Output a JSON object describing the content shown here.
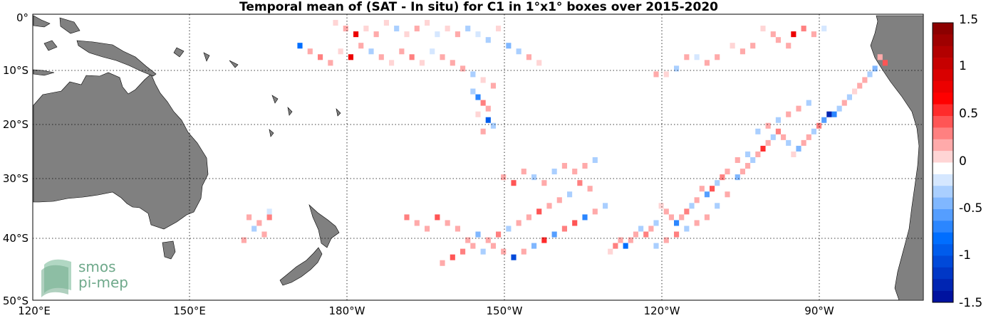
{
  "chart_data": {
    "type": "heatmap",
    "title": "Temporal mean of (SAT - In situ) for C1 in 1°x1° boxes over 2015-2020",
    "x_ticks": [
      "120°E",
      "150°E",
      "180°W",
      "150°W",
      "120°W",
      "90°W"
    ],
    "y_ticks": [
      "0°",
      "10°S",
      "20°S",
      "30°S",
      "40°S",
      "50°S"
    ],
    "x_range_deg_east": [
      120,
      295
    ],
    "y_range_deg_north": [
      0,
      -50
    ],
    "grid": true,
    "colorbar": {
      "ticks": [
        "1.5",
        "1",
        "0.5",
        "0",
        "-0.5",
        "-1",
        "-1.5"
      ],
      "range": [
        -1.5,
        1.5
      ],
      "levels": 24,
      "colormap": "blue-white-red"
    },
    "colors": {
      "land": "#808080",
      "ocean": "#ffffff",
      "negative_max": "#00008c",
      "positive_max": "#8c0000"
    },
    "cells": [
      [
        179,
        1,
        0.1
      ],
      [
        181,
        2,
        0.2
      ],
      [
        183,
        3,
        0.9
      ],
      [
        185,
        2,
        0.1
      ],
      [
        187,
        3,
        0.2
      ],
      [
        189,
        1,
        0.1
      ],
      [
        191,
        2,
        -0.2
      ],
      [
        193,
        3,
        0.1
      ],
      [
        195,
        2,
        0.2
      ],
      [
        197,
        1,
        0.1
      ],
      [
        199,
        3,
        -0.1
      ],
      [
        201,
        2,
        0.1
      ],
      [
        203,
        3,
        0.2
      ],
      [
        205,
        2,
        -0.3
      ],
      [
        207,
        3,
        -0.1
      ],
      [
        209,
        4,
        -0.2
      ],
      [
        211,
        2,
        0.1
      ],
      [
        213,
        5,
        -0.4
      ],
      [
        215,
        6,
        -0.2
      ],
      [
        217,
        7,
        0.2
      ],
      [
        219,
        8,
        0.1
      ],
      [
        172,
        5,
        -0.8
      ],
      [
        174,
        6,
        0.2
      ],
      [
        176,
        7,
        0.4
      ],
      [
        178,
        8,
        0.3
      ],
      [
        180,
        6,
        0.1
      ],
      [
        182,
        7,
        0.9
      ],
      [
        184,
        5,
        0.2
      ],
      [
        186,
        6,
        -0.2
      ],
      [
        188,
        7,
        0.3
      ],
      [
        190,
        8,
        0.1
      ],
      [
        192,
        6,
        0.2
      ],
      [
        194,
        7,
        0.4
      ],
      [
        196,
        8,
        0.1
      ],
      [
        198,
        6,
        -0.1
      ],
      [
        200,
        7,
        0.2
      ],
      [
        202,
        8,
        0.3
      ],
      [
        204,
        9,
        0.2
      ],
      [
        206,
        10,
        -0.2
      ],
      [
        208,
        11,
        0.1
      ],
      [
        210,
        12,
        0.2
      ],
      [
        206,
        13,
        -0.3
      ],
      [
        207,
        14,
        -0.6
      ],
      [
        208,
        15,
        0.4
      ],
      [
        209,
        16,
        0.2
      ],
      [
        207,
        17,
        0.1
      ],
      [
        209,
        18,
        -0.9
      ],
      [
        210,
        19,
        -0.3
      ],
      [
        208,
        20,
        0.3
      ],
      [
        263,
        2,
        0.1
      ],
      [
        265,
        3,
        0.2
      ],
      [
        266,
        4,
        0.3
      ],
      [
        268,
        5,
        0.2
      ],
      [
        269,
        3,
        0.9
      ],
      [
        271,
        2,
        0.4
      ],
      [
        273,
        3,
        0.2
      ],
      [
        275,
        2,
        -0.1
      ],
      [
        257,
        5,
        0.1
      ],
      [
        259,
        6,
        0.2
      ],
      [
        261,
        5,
        0.3
      ],
      [
        248,
        7,
        0.2
      ],
      [
        250,
        7,
        -0.1
      ],
      [
        252,
        8,
        0.2
      ],
      [
        254,
        7,
        0.3
      ],
      [
        244,
        10,
        0.1
      ],
      [
        246,
        9,
        -0.2
      ],
      [
        242,
        10,
        0.2
      ],
      [
        286,
        7,
        0.2
      ],
      [
        287,
        8,
        0.5
      ],
      [
        285,
        9,
        -0.4
      ],
      [
        284,
        10,
        -0.2
      ],
      [
        283,
        11,
        0.3
      ],
      [
        282,
        12,
        0.2
      ],
      [
        281,
        13,
        0.1
      ],
      [
        280,
        14,
        -0.3
      ],
      [
        279,
        15,
        0.2
      ],
      [
        278,
        16,
        -0.2
      ],
      [
        277,
        17,
        -0.6
      ],
      [
        276,
        17,
        -1.3
      ],
      [
        275,
        18,
        -0.5
      ],
      [
        274,
        19,
        0.4
      ],
      [
        273,
        20,
        -0.3
      ],
      [
        272,
        21,
        0.3
      ],
      [
        271,
        22,
        0.2
      ],
      [
        270,
        23,
        -0.4
      ],
      [
        269,
        24,
        0.1
      ],
      [
        268,
        22,
        -0.2
      ],
      [
        267,
        21,
        0.2
      ],
      [
        266,
        20,
        0.4
      ],
      [
        265,
        21,
        -0.2
      ],
      [
        264,
        22,
        0.3
      ],
      [
        263,
        23,
        0.6
      ],
      [
        262,
        24,
        0.2
      ],
      [
        261,
        25,
        -0.3
      ],
      [
        260,
        26,
        0.2
      ],
      [
        259,
        27,
        0.3
      ],
      [
        258,
        28,
        -0.4
      ],
      [
        256,
        27,
        0.2
      ],
      [
        255,
        28,
        0.4
      ],
      [
        254,
        29,
        -0.2
      ],
      [
        253,
        30,
        0.5
      ],
      [
        252,
        31,
        -0.5
      ],
      [
        251,
        30,
        0.3
      ],
      [
        250,
        32,
        0.2
      ],
      [
        249,
        33,
        -0.2
      ],
      [
        248,
        34,
        0.4
      ],
      [
        247,
        35,
        0.3
      ],
      [
        246,
        36,
        -0.6
      ],
      [
        245,
        35,
        0.2
      ],
      [
        244,
        34,
        0.3
      ],
      [
        243,
        33,
        0.1
      ],
      [
        242,
        36,
        -0.3
      ],
      [
        241,
        37,
        0.2
      ],
      [
        240,
        38,
        0.4
      ],
      [
        239,
        37,
        -0.3
      ],
      [
        238,
        38,
        0.2
      ],
      [
        237,
        39,
        0.3
      ],
      [
        236,
        40,
        -0.8
      ],
      [
        235,
        39,
        0.2
      ],
      [
        234,
        40,
        0.4
      ],
      [
        233,
        41,
        0.1
      ],
      [
        262,
        20,
        -0.3
      ],
      [
        264,
        19,
        0.2
      ],
      [
        266,
        18,
        -0.2
      ],
      [
        268,
        17,
        0.3
      ],
      [
        270,
        16,
        0.2
      ],
      [
        272,
        15,
        -0.3
      ],
      [
        258,
        25,
        0.3
      ],
      [
        260,
        24,
        -0.2
      ],
      [
        256,
        31,
        0.2
      ],
      [
        254,
        33,
        -0.3
      ],
      [
        252,
        35,
        0.3
      ],
      [
        250,
        36,
        0.2
      ],
      [
        248,
        37,
        -0.2
      ],
      [
        246,
        38,
        0.4
      ],
      [
        244,
        39,
        0.2
      ],
      [
        242,
        40,
        -0.2
      ],
      [
        232,
        33,
        -0.3
      ],
      [
        230,
        34,
        0.2
      ],
      [
        228,
        35,
        -0.6
      ],
      [
        226,
        36,
        0.5
      ],
      [
        224,
        37,
        0.4
      ],
      [
        222,
        38,
        -0.5
      ],
      [
        220,
        39,
        0.6
      ],
      [
        218,
        40,
        -0.4
      ],
      [
        216,
        41,
        0.3
      ],
      [
        214,
        42,
        -1.0
      ],
      [
        212,
        41,
        0.3
      ],
      [
        210,
        40,
        0.2
      ],
      [
        208,
        41,
        -0.2
      ],
      [
        206,
        40,
        0.3
      ],
      [
        204,
        41,
        0.4
      ],
      [
        202,
        42,
        0.5
      ],
      [
        200,
        43,
        0.2
      ],
      [
        229,
        30,
        0.3
      ],
      [
        227,
        29,
        0.4
      ],
      [
        225,
        31,
        -0.2
      ],
      [
        223,
        32,
        0.3
      ],
      [
        221,
        33,
        0.2
      ],
      [
        219,
        34,
        0.5
      ],
      [
        217,
        35,
        0.3
      ],
      [
        215,
        36,
        0.2
      ],
      [
        213,
        37,
        -0.3
      ],
      [
        211,
        38,
        0.4
      ],
      [
        209,
        39,
        0.2
      ],
      [
        207,
        38,
        -0.4
      ],
      [
        205,
        39,
        0.3
      ],
      [
        203,
        37,
        0.2
      ],
      [
        201,
        36,
        0.3
      ],
      [
        199,
        35,
        0.5
      ],
      [
        197,
        37,
        0.2
      ],
      [
        195,
        36,
        0.3
      ],
      [
        193,
        35,
        0.4
      ],
      [
        212,
        28,
        0.3
      ],
      [
        214,
        29,
        0.5
      ],
      [
        216,
        27,
        0.2
      ],
      [
        218,
        28,
        -0.2
      ],
      [
        220,
        29,
        0.3
      ],
      [
        222,
        27,
        -0.3
      ],
      [
        224,
        26,
        0.2
      ],
      [
        226,
        27,
        0.3
      ],
      [
        228,
        26,
        0.2
      ],
      [
        230,
        25,
        -0.2
      ],
      [
        162,
        35,
        0.2
      ],
      [
        164,
        36,
        0.3
      ],
      [
        166,
        35,
        0.4
      ],
      [
        163,
        37,
        -0.3
      ],
      [
        165,
        38,
        0.2
      ],
      [
        161,
        39,
        0.3
      ],
      [
        166,
        34,
        -0.1
      ]
    ]
  }
}
